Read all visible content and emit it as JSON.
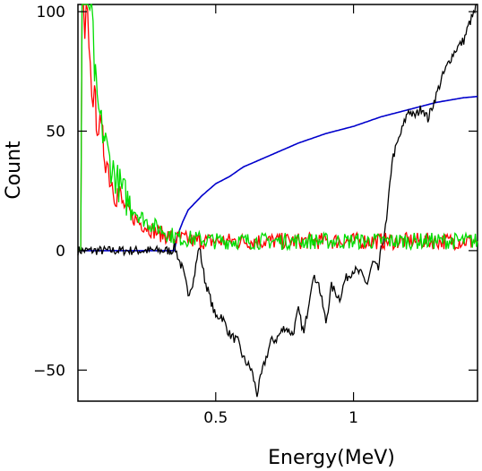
{
  "chart_data": {
    "type": "line",
    "xlabel": "Energy(MeV)",
    "ylabel": "Count",
    "xlim": [
      0.0,
      1.45
    ],
    "ylim": [
      -63,
      103
    ],
    "xticks": [
      {
        "value": 0.5,
        "label": "0.5"
      },
      {
        "value": 1.0,
        "label": "1"
      }
    ],
    "yticks": [
      {
        "value": 100,
        "label": "100"
      },
      {
        "value": 50,
        "label": "50"
      },
      {
        "value": 0,
        "label": "0"
      },
      {
        "value": -50,
        "label": "−50"
      }
    ],
    "grid": false,
    "series": [
      {
        "color": "#0000cc",
        "x": [
          0.0,
          0.35,
          0.36,
          0.38,
          0.4,
          0.45,
          0.5,
          0.55,
          0.6,
          0.7,
          0.8,
          0.9,
          1.0,
          1.1,
          1.2,
          1.3,
          1.4,
          1.45
        ],
        "y": [
          0,
          0,
          6,
          12,
          17,
          23,
          28,
          31,
          35,
          40,
          45,
          49,
          52,
          56,
          59,
          62,
          64,
          64.5
        ]
      },
      {
        "color": "#000000",
        "x": [
          0.0,
          0.33,
          0.34,
          0.35,
          0.37,
          0.38,
          0.4,
          0.42,
          0.44,
          0.46,
          0.48,
          0.5,
          0.52,
          0.55,
          0.58,
          0.6,
          0.63,
          0.65,
          0.67,
          0.7,
          0.72,
          0.75,
          0.78,
          0.8,
          0.82,
          0.85,
          0.87,
          0.9,
          0.92,
          0.95,
          0.97,
          1.0,
          1.03,
          1.05,
          1.07,
          1.09,
          1.1,
          1.12,
          1.14,
          1.16,
          1.18,
          1.2,
          1.22,
          1.25,
          1.27,
          1.3,
          1.32,
          1.35,
          1.37,
          1.4,
          1.42,
          1.44,
          1.45
        ],
        "y": [
          0,
          0,
          0,
          2,
          -5,
          -8,
          -18,
          -12,
          2,
          -12,
          -20,
          -28,
          -27,
          -35,
          -38,
          -45,
          -50,
          -60,
          -50,
          -38,
          -37,
          -32,
          -35,
          -25,
          -35,
          -12,
          -12,
          -30,
          -15,
          -20,
          -12,
          -8,
          -10,
          -14,
          -5,
          -8,
          0,
          12,
          38,
          45,
          52,
          59,
          56,
          60,
          55,
          65,
          72,
          80,
          84,
          88,
          95,
          100,
          104
        ]
      },
      {
        "color": "#ff0000",
        "x": [
          0.0,
          0.01,
          0.015,
          0.02,
          0.025,
          0.03,
          0.035,
          0.04,
          0.045,
          0.05,
          0.06,
          0.07,
          0.08,
          0.09,
          0.1,
          0.11,
          0.12,
          0.14,
          0.16,
          0.18,
          0.2,
          0.22,
          0.25,
          0.28,
          0.3,
          0.33,
          0.35,
          0.38,
          0.42,
          0.5,
          0.6,
          0.7,
          0.8,
          0.9,
          1.0,
          1.1,
          1.2,
          1.3,
          1.4,
          1.45
        ],
        "y": [
          0,
          0,
          103,
          103,
          85,
          103,
          95,
          90,
          75,
          70,
          62,
          55,
          50,
          45,
          40,
          35,
          30,
          25,
          20,
          17,
          14,
          12,
          10,
          8,
          7,
          6,
          5,
          5,
          4,
          4,
          4,
          4,
          4,
          4,
          4,
          4,
          4,
          4,
          4,
          4
        ]
      },
      {
        "color": "#00dd00",
        "x": [
          0.0,
          0.01,
          0.015,
          0.02,
          0.03,
          0.04,
          0.05,
          0.06,
          0.07,
          0.08,
          0.09,
          0.1,
          0.11,
          0.12,
          0.14,
          0.16,
          0.18,
          0.2,
          0.22,
          0.25,
          0.28,
          0.3,
          0.33,
          0.35,
          0.38,
          0.42,
          0.5,
          0.6,
          0.7,
          0.8,
          0.9,
          1.0,
          1.1,
          1.2,
          1.3,
          1.4,
          1.45
        ],
        "y": [
          0,
          0,
          103,
          103,
          103,
          103,
          103,
          75,
          62,
          55,
          50,
          45,
          40,
          36,
          30,
          25,
          21,
          18,
          15,
          12,
          10,
          9,
          7,
          6,
          5,
          5,
          4,
          4,
          4,
          4,
          4,
          4,
          4,
          4,
          4,
          4,
          4
        ]
      }
    ]
  }
}
